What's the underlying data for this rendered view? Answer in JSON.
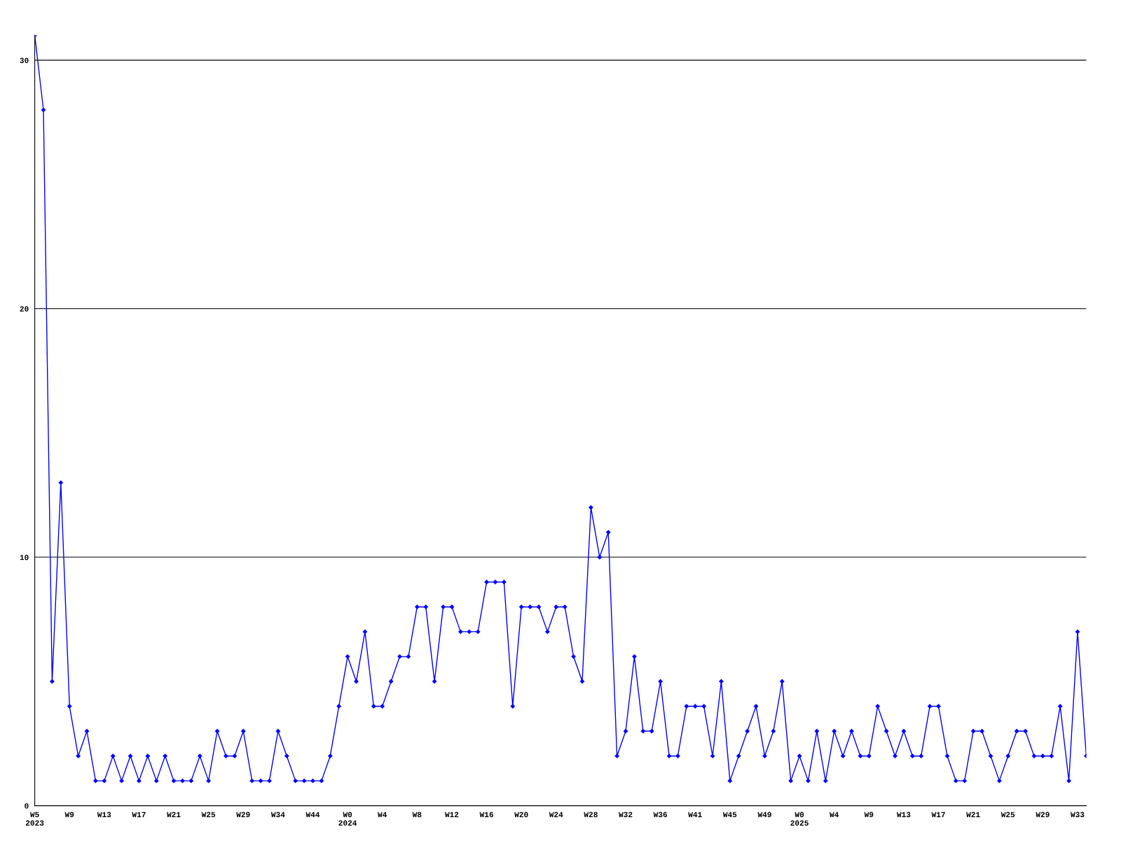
{
  "chart_data": {
    "type": "line",
    "categories": [
      "W5\n2023",
      null,
      null,
      null,
      "W9",
      null,
      null,
      null,
      "W13",
      null,
      null,
      null,
      "W17",
      null,
      null,
      null,
      "W21",
      null,
      null,
      null,
      "W25",
      null,
      null,
      null,
      "W29",
      null,
      null,
      null,
      "W34",
      null,
      null,
      null,
      "W44",
      null,
      null,
      null,
      "W0\n2024",
      null,
      null,
      null,
      "W4",
      null,
      null,
      null,
      "W8",
      null,
      null,
      null,
      "W12",
      null,
      null,
      null,
      "W16",
      null,
      null,
      null,
      "W20",
      null,
      null,
      null,
      "W24",
      null,
      null,
      null,
      "W28",
      null,
      null,
      null,
      "W32",
      null,
      null,
      null,
      "W36",
      null,
      null,
      null,
      "W41",
      null,
      null,
      null,
      "W45",
      null,
      null,
      null,
      "W49",
      null,
      null,
      null,
      "W0\n2025",
      null,
      null,
      null,
      "W4",
      null,
      null,
      null,
      "W9",
      null,
      null,
      null,
      "W13",
      null,
      null,
      null,
      "W17",
      null,
      null,
      null,
      "W21",
      null,
      null,
      null,
      "W25",
      null,
      null,
      null,
      "W29",
      null,
      null,
      null,
      "W33",
      null
    ],
    "series": [
      {
        "color": "#0000ff",
        "values": [
          31,
          28,
          5,
          13,
          4,
          2,
          3,
          1,
          1,
          2,
          1,
          2,
          1,
          2,
          1,
          2,
          1,
          1,
          1,
          2,
          1,
          3,
          2,
          2,
          3,
          1,
          1,
          1,
          3,
          2,
          1,
          1,
          1,
          1,
          2,
          4,
          6,
          5,
          7,
          4,
          4,
          5,
          6,
          6,
          8,
          8,
          5,
          8,
          8,
          7,
          7,
          7,
          9,
          9,
          9,
          4,
          8,
          8,
          8,
          7,
          8,
          8,
          6,
          5,
          12,
          10,
          11,
          2,
          3,
          6,
          3,
          3,
          5,
          2,
          2,
          4,
          4,
          4,
          2,
          5,
          1,
          2,
          3,
          4,
          2,
          3,
          5,
          1,
          2,
          1,
          3,
          1,
          3,
          2,
          3,
          2,
          2,
          4,
          3,
          2,
          3,
          2,
          2,
          4,
          4,
          2,
          1,
          1,
          3,
          3,
          2,
          1,
          2,
          3,
          3,
          2,
          2,
          2,
          4,
          1,
          7,
          2
        ]
      }
    ],
    "ylim": [
      0,
      31
    ],
    "yticks": [
      0,
      10,
      20,
      30
    ],
    "grid": "y",
    "marker": "diamond",
    "line_style": "solid"
  }
}
